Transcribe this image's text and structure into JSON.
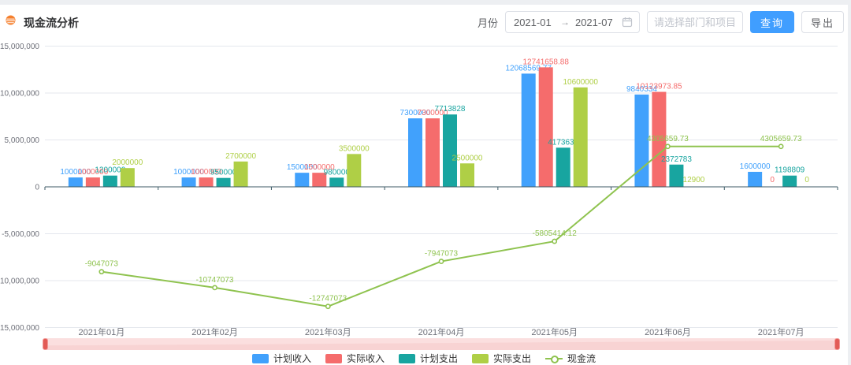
{
  "header": {
    "title": "现金流分析",
    "month_label": "月份",
    "date_start": "2021-01",
    "range_separator": "→",
    "date_end": "2021-07",
    "filter_placeholder": "请选择部门和项目",
    "query_label": "查询",
    "export_label": "导出"
  },
  "colors": {
    "accent_blue": "#409EFF",
    "title_icon_orange": "#F57F2C",
    "grid_line": "#E4E7ED",
    "axis_line": "#3C5A66",
    "axis_text": "#6E7079",
    "datazoom_fill": "#FBDFDF",
    "datazoom_handle": "#E25B56"
  },
  "chart_data": {
    "type": "bar",
    "subtype": "grouped bars with overlay line (ECharts style)",
    "categories": [
      "2021年01月",
      "2021年02月",
      "2021年03月",
      "2021年04月",
      "2021年05月",
      "2021年06月",
      "2021年07月"
    ],
    "series": [
      {
        "name": "计划收入",
        "type": "bar",
        "color": "#41A1FC",
        "values": [
          1000000,
          1000000,
          1500000,
          7300000,
          12068569.77,
          9840334,
          1600000
        ]
      },
      {
        "name": "实际收入",
        "type": "bar",
        "color": "#F56C6C",
        "values": [
          1000000,
          1000000,
          1500000,
          7300000,
          12741658.88,
          10123973.85,
          0
        ]
      },
      {
        "name": "计划支出",
        "type": "bar",
        "color": "#18A5A0",
        "values": [
          1200000,
          950000,
          980000,
          7713828,
          4173630,
          2372783,
          1198809
        ]
      },
      {
        "name": "实际支出",
        "type": "bar",
        "color": "#AFCF46",
        "values": [
          2000000,
          2700000,
          3500000,
          2500000,
          10600000,
          12900,
          0
        ]
      },
      {
        "name": "现金流",
        "type": "line",
        "color": "#8FC34F",
        "values": [
          -9047073,
          -10747073,
          -12747073,
          -7947073,
          -5805414.12,
          4305659.73,
          4305659.73
        ]
      }
    ],
    "y_ticks": [
      15000000,
      10000000,
      5000000,
      0,
      -5000000,
      -10000000,
      -15000000
    ],
    "y_tick_labels": [
      "15,000,000",
      "10,000,000",
      "5,000,000",
      "0",
      "-5,000,000",
      "-10,000,000",
      "-15,000,000"
    ],
    "ylim": [
      -15000000,
      15000000
    ],
    "grid": true,
    "value_labels": true,
    "legend_position": "bottom"
  }
}
